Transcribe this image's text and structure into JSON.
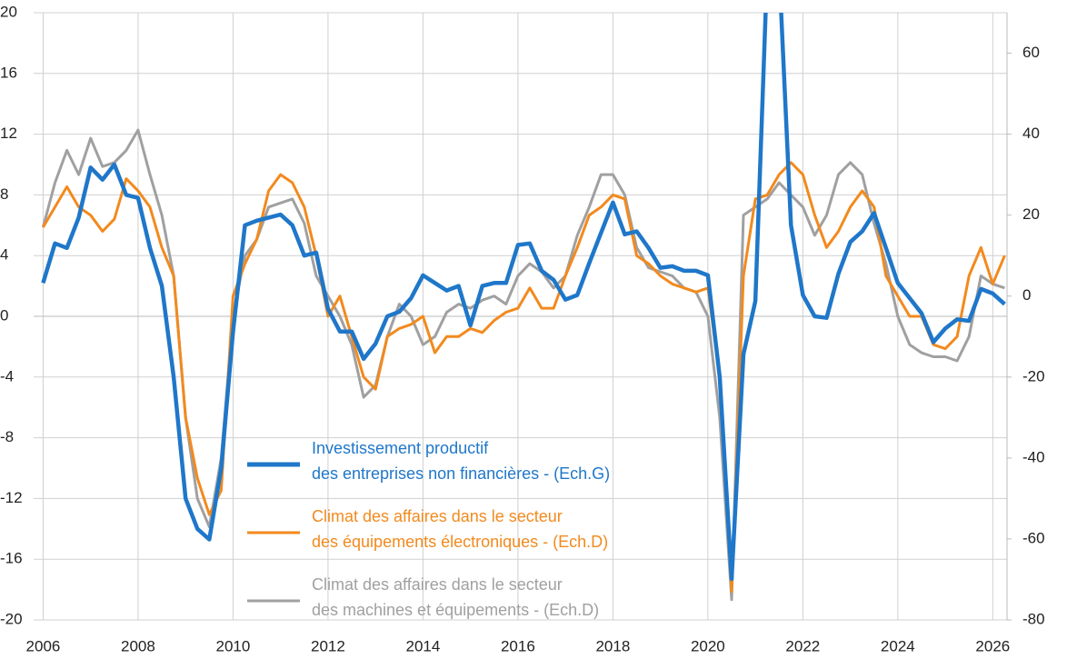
{
  "chart_data": {
    "type": "line",
    "x": [
      2006,
      2006.25,
      2006.5,
      2006.75,
      2007,
      2007.25,
      2007.5,
      2007.75,
      2008,
      2008.25,
      2008.5,
      2008.75,
      2009,
      2009.25,
      2009.5,
      2009.75,
      2010,
      2010.25,
      2010.5,
      2010.75,
      2011,
      2011.25,
      2011.5,
      2011.75,
      2012,
      2012.25,
      2012.5,
      2012.75,
      2013,
      2013.25,
      2013.5,
      2013.75,
      2014,
      2014.25,
      2014.5,
      2014.75,
      2015,
      2015.25,
      2015.5,
      2015.75,
      2016,
      2016.25,
      2016.5,
      2016.75,
      2017,
      2017.25,
      2017.5,
      2017.75,
      2018,
      2018.25,
      2018.5,
      2018.75,
      2019,
      2019.25,
      2019.5,
      2019.75,
      2020,
      2020.25,
      2020.5,
      2020.75,
      2021,
      2021.25,
      2021.5,
      2021.75,
      2022,
      2022.25,
      2022.5,
      2022.75,
      2023,
      2023.25,
      2023.5,
      2023.75,
      2024,
      2024.25,
      2024.5,
      2024.75,
      2025,
      2025.25,
      2025.5,
      2025.75,
      2026,
      2026.25
    ],
    "series": [
      {
        "name": "Investissement productif\ndes entreprises non financières - (Ech.G)",
        "color": "#1f77c9",
        "axis": "y",
        "values": [
          2.2,
          4.8,
          4.5,
          6.5,
          9.8,
          9,
          10,
          8,
          7.8,
          4.5,
          2,
          -4,
          -12,
          -14,
          -14.7,
          -10,
          -1,
          6,
          6.3,
          6.5,
          6.7,
          6,
          4,
          4.2,
          0.5,
          -1,
          -1,
          -2.8,
          -1.8,
          0,
          0.3,
          1.2,
          2.7,
          2.2,
          1.7,
          2,
          -0.6,
          2,
          2.2,
          2.2,
          4.7,
          4.8,
          3,
          2.4,
          1.1,
          1.4,
          3.5,
          5.5,
          7.5,
          5.4,
          5.6,
          4.5,
          3.2,
          3.3,
          3,
          3,
          2.7,
          -4,
          -17.3,
          -2.5,
          1,
          23,
          23,
          6,
          1.4,
          0,
          -0.1,
          2.8,
          4.9,
          5.6,
          6.8,
          4.5,
          2.2,
          1.2,
          0.2,
          -1.7,
          -0.8,
          -0.2,
          -0.3,
          1.8,
          1.5,
          0.8
        ]
      },
      {
        "name": "Climat des affaires dans le secteur\ndes équipements électroniques - (Ech.D)",
        "color": "#f28a1e",
        "axis": "y2",
        "values": [
          17,
          22,
          27,
          22,
          20,
          16,
          19,
          29,
          26,
          22,
          12,
          5,
          -30,
          -45,
          -54,
          -48,
          0,
          8,
          14,
          26,
          30,
          28,
          22,
          10,
          -5,
          0,
          -10,
          -20,
          -23,
          -10,
          -8,
          -7,
          -5,
          -14,
          -10,
          -10,
          -8,
          -9,
          -6,
          -4,
          -3,
          2,
          -3,
          -3,
          5,
          12,
          20,
          22,
          25,
          24,
          10,
          8,
          5,
          3,
          2,
          1,
          2,
          -20,
          -73,
          5,
          24,
          25,
          30,
          33,
          30,
          20,
          12,
          16,
          22,
          26,
          22,
          5,
          0,
          -5,
          -5,
          -12,
          -13,
          -10,
          5,
          12,
          3,
          10
        ]
      },
      {
        "name": "Climat des affaires dans le secteur\ndes machines et équipements  - (Ech.D)",
        "color": "#a0a0a0",
        "axis": "y2",
        "values": [
          17,
          28,
          36,
          30,
          39,
          32,
          33,
          36,
          41,
          30,
          20,
          5,
          -30,
          -50,
          -57,
          -40,
          -5,
          10,
          14,
          22,
          23,
          24,
          18,
          5,
          0,
          -5,
          -12,
          -25,
          -22,
          -10,
          -2,
          -5,
          -12,
          -10,
          -4,
          -2,
          -3,
          -1,
          0,
          -2,
          5,
          8,
          6,
          2,
          5,
          15,
          22,
          30,
          30,
          25,
          12,
          7,
          6,
          5,
          2,
          1,
          -5,
          -30,
          -75,
          20,
          22,
          24,
          28,
          25,
          22,
          15,
          20,
          30,
          33,
          30,
          18,
          8,
          -5,
          -12,
          -14,
          -15,
          -15,
          -16,
          -10,
          5,
          3,
          2
        ]
      }
    ],
    "xlim": [
      2005.8,
      2026.3
    ],
    "xticks": [
      2006,
      2008,
      2010,
      2012,
      2014,
      2016,
      2018,
      2020,
      2022,
      2024,
      2026
    ],
    "ylim": [
      -20,
      20
    ],
    "yticks": [
      -20,
      -16,
      -12,
      -8,
      -4,
      0,
      4,
      8,
      12,
      16,
      20
    ],
    "y2lim": [
      -80,
      70
    ],
    "y2ticks": [
      -80,
      -60,
      -40,
      -20,
      0,
      20,
      40,
      60
    ],
    "grid": true
  }
}
